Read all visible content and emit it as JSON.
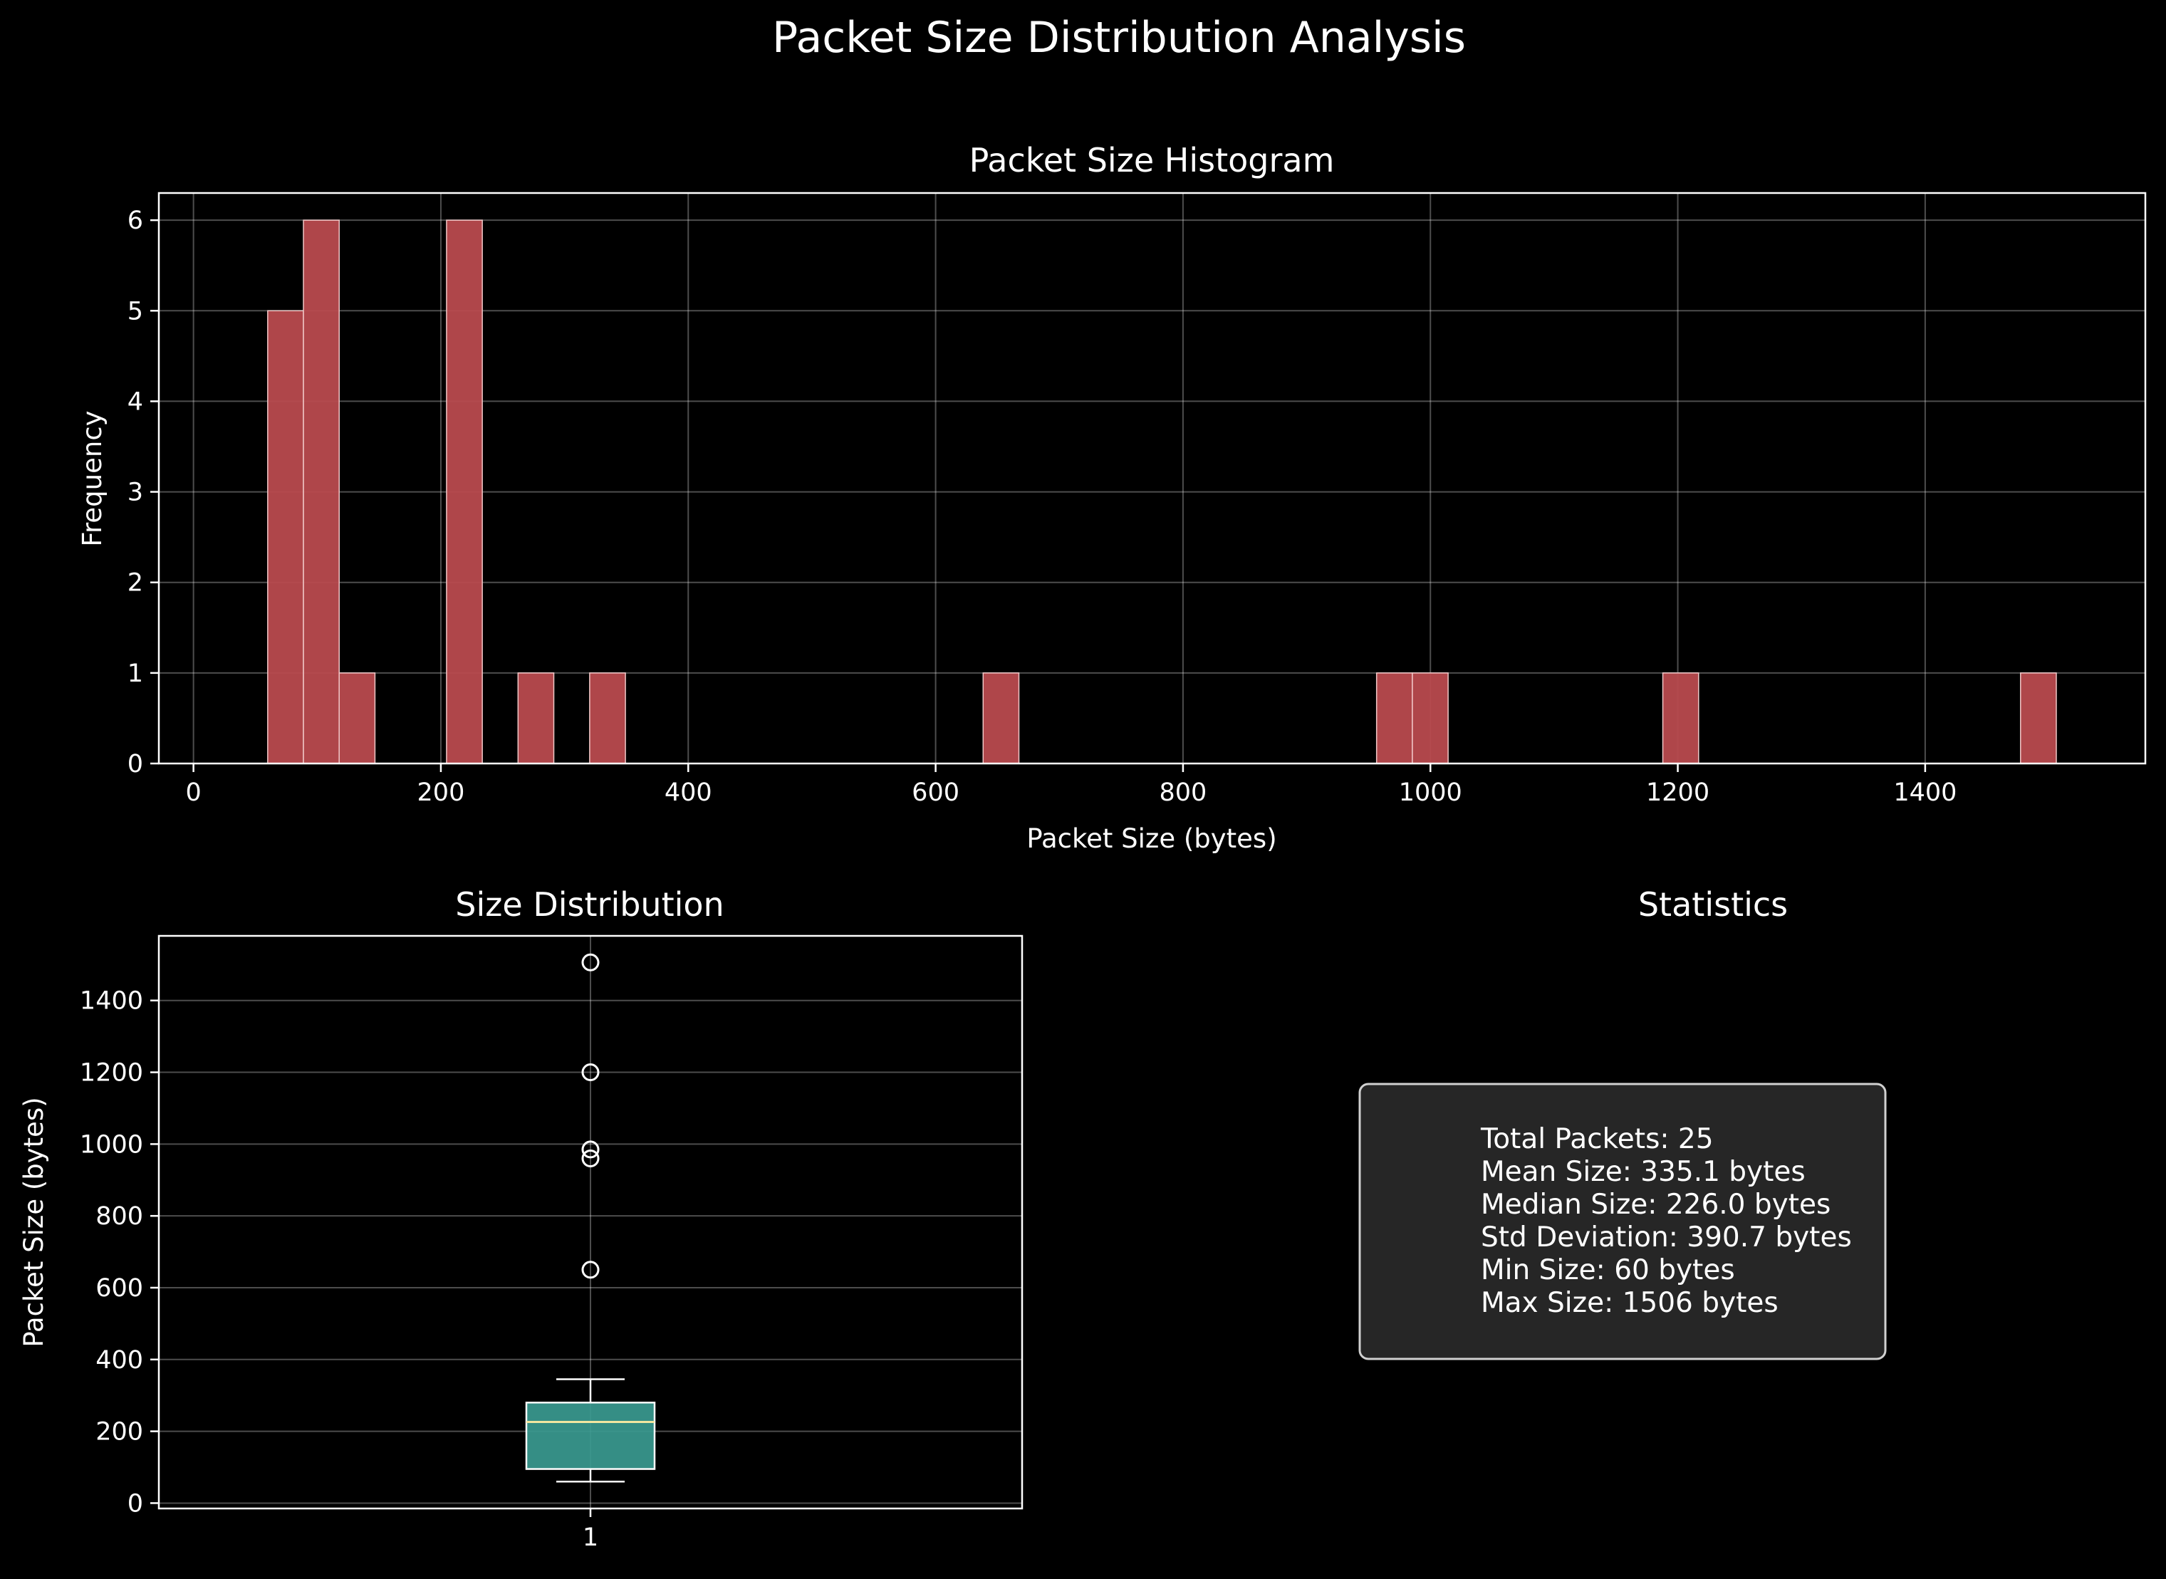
{
  "figure_title": "Packet Size Distribution Analysis",
  "chart_data": [
    {
      "type": "bar",
      "title": "Packet Size Histogram",
      "xlabel": "Packet Size (bytes)",
      "ylabel": "Frequency",
      "xlim": [
        -28,
        1578
      ],
      "ylim": [
        0,
        6.3
      ],
      "xticks": [
        0,
        200,
        400,
        600,
        800,
        1000,
        1200,
        1400
      ],
      "yticks": [
        0,
        1,
        2,
        3,
        4,
        5,
        6
      ],
      "bin_width": 28.92,
      "bins": [
        {
          "start": 60.0,
          "count": 5
        },
        {
          "start": 88.9,
          "count": 6
        },
        {
          "start": 117.8,
          "count": 1
        },
        {
          "start": 204.6,
          "count": 6
        },
        {
          "start": 262.4,
          "count": 1
        },
        {
          "start": 320.3,
          "count": 1
        },
        {
          "start": 638.4,
          "count": 1
        },
        {
          "start": 956.5,
          "count": 1
        },
        {
          "start": 985.4,
          "count": 1
        },
        {
          "start": 1187.9,
          "count": 1
        },
        {
          "start": 1477.1,
          "count": 1
        }
      ],
      "grid": true,
      "bar_color": "#b84a4e"
    },
    {
      "type": "box",
      "title": "Size Distribution",
      "xlabel": "",
      "ylabel": "Packet Size (bytes)",
      "ylim": [
        -15,
        1580
      ],
      "yticks": [
        0,
        200,
        400,
        600,
        800,
        1000,
        1200,
        1400
      ],
      "categories": [
        "1"
      ],
      "q1": 95,
      "median": 226,
      "q3": 280,
      "whisker_low": 60,
      "whisker_high": 345,
      "outliers": [
        650,
        960,
        985,
        1200,
        1506
      ],
      "grid": true,
      "box_color": "#3a9a90",
      "median_color": "#f2e6a0"
    }
  ],
  "statistics": {
    "title": "Statistics",
    "lines": [
      "Total Packets: 25",
      "Mean Size: 335.1 bytes",
      "Median Size: 226.0 bytes",
      "Std Deviation: 390.7 bytes",
      "Min Size: 60 bytes",
      "Max Size: 1506 bytes"
    ]
  }
}
